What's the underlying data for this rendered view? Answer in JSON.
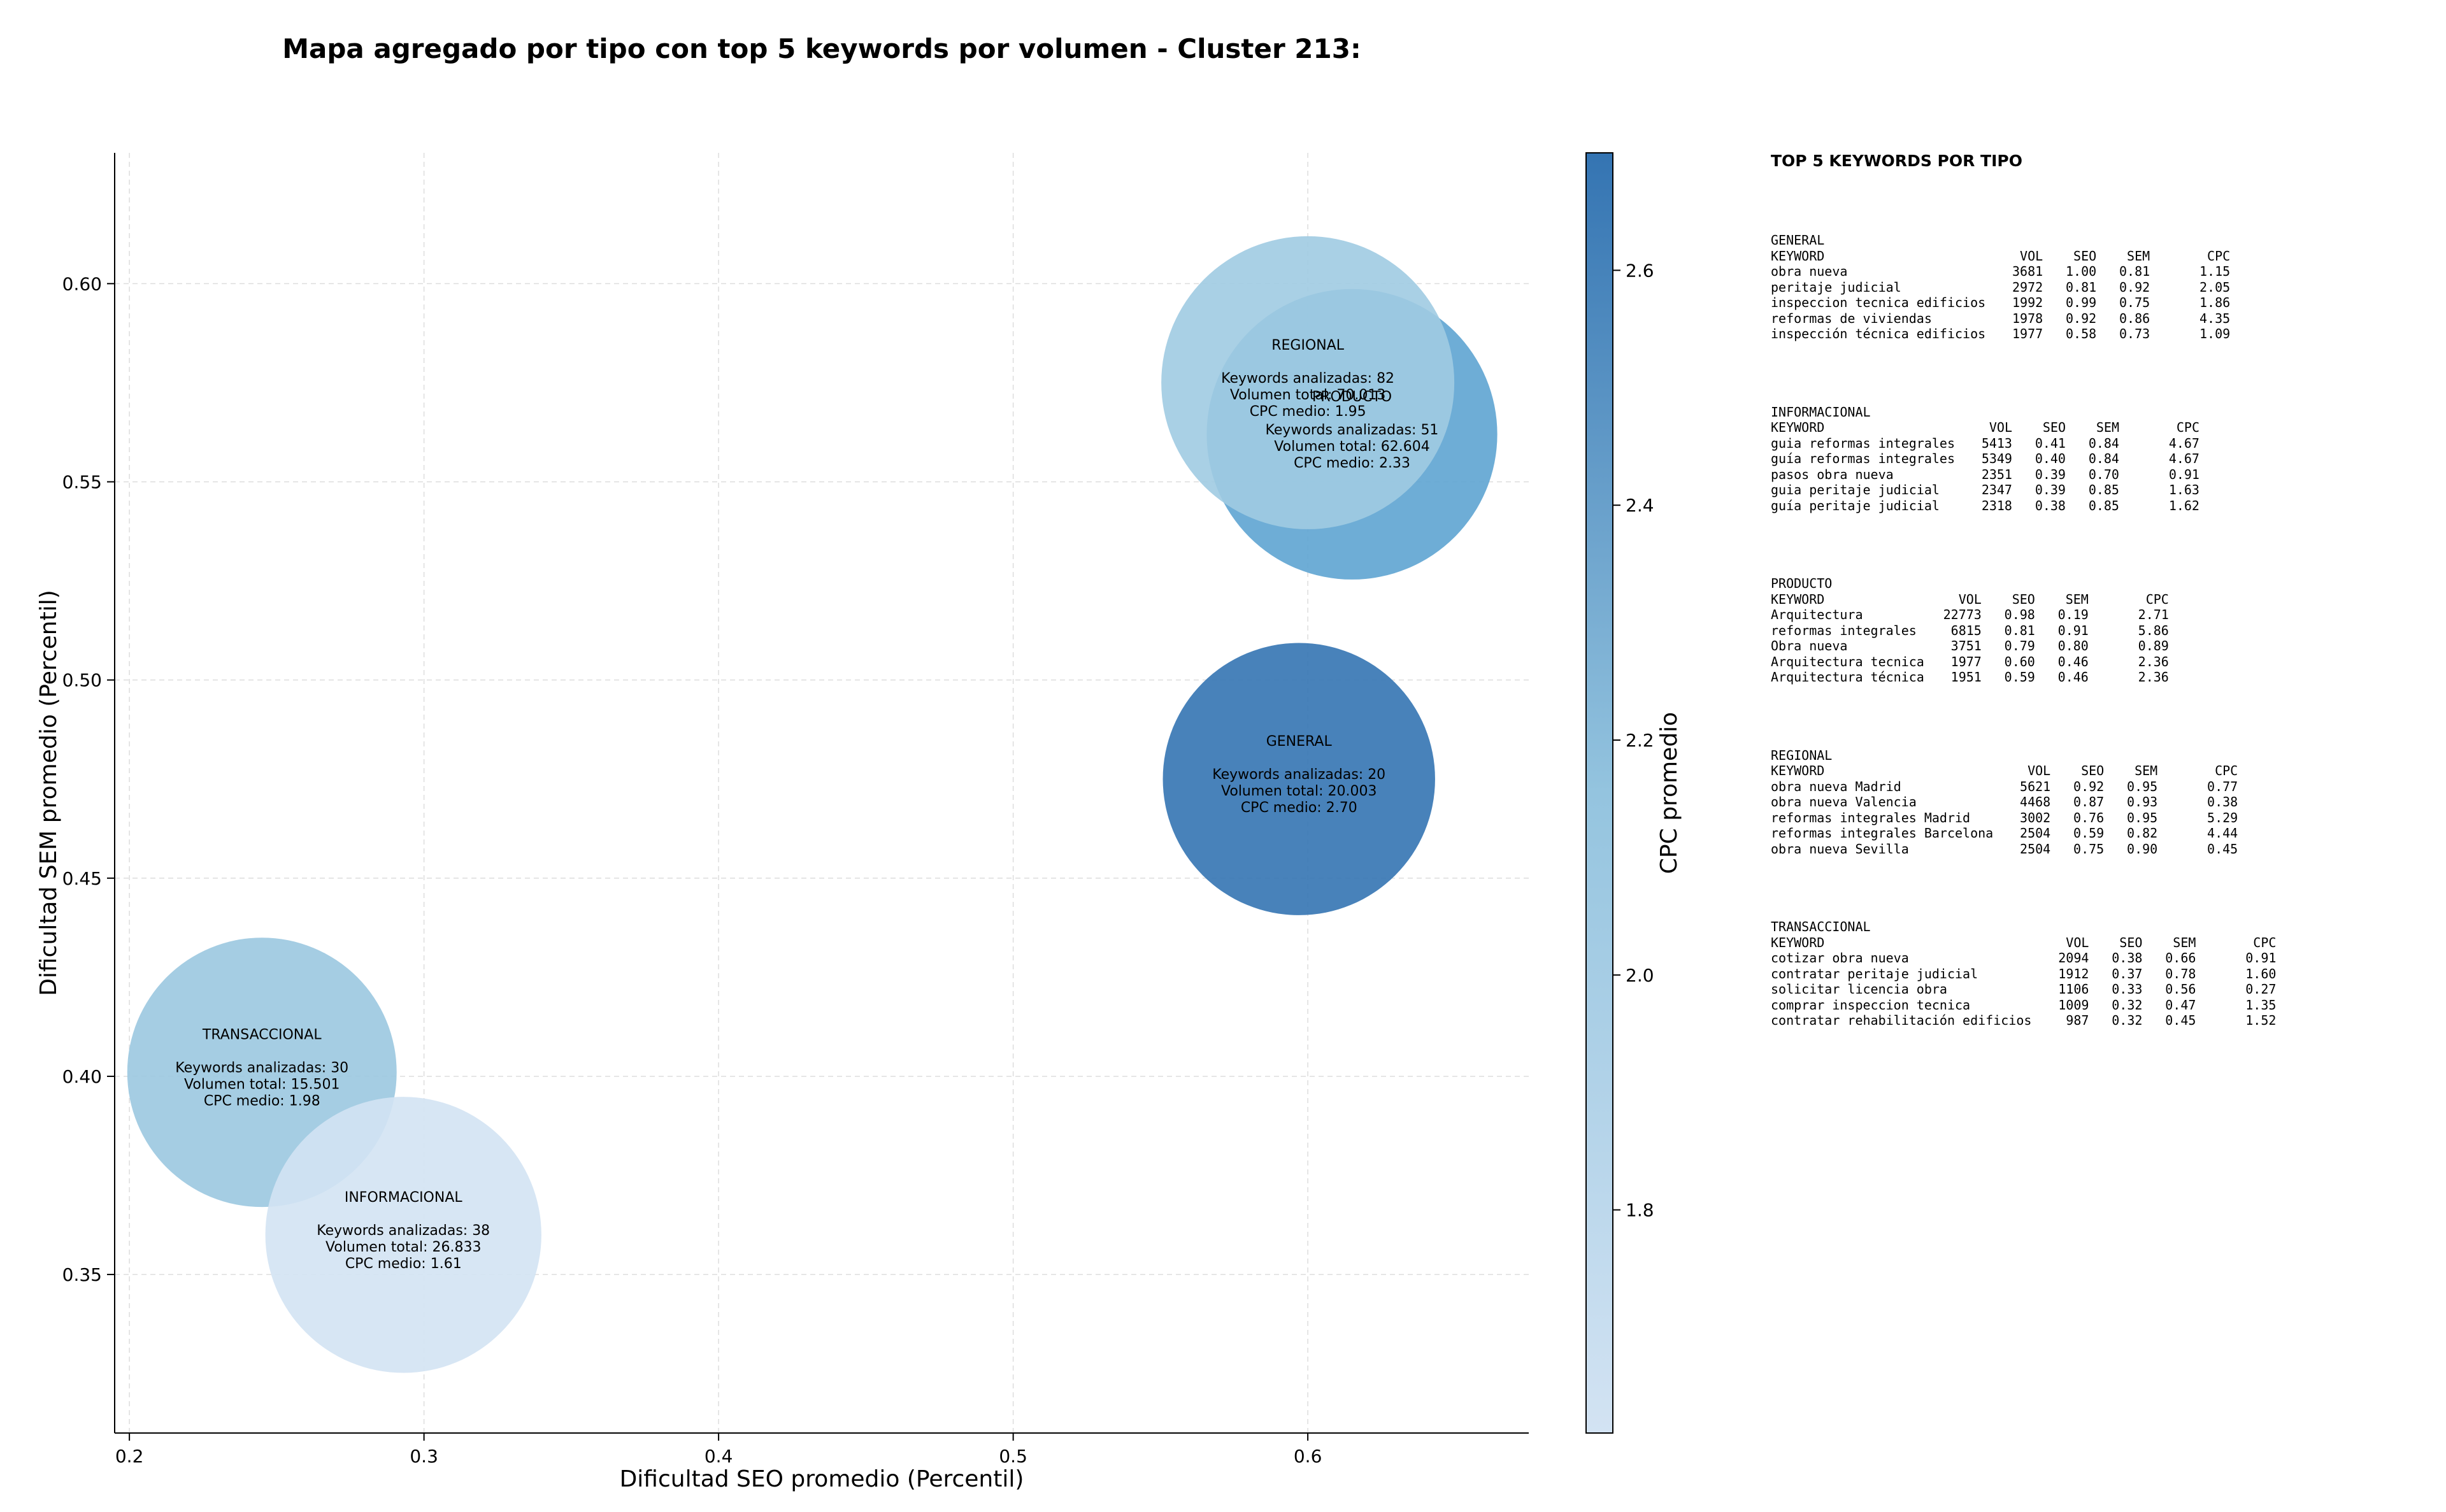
{
  "chart_data": {
    "type": "scatter",
    "title": "Mapa agregado por tipo con top 5 keywords por volumen - Cluster 213:",
    "xlabel": "Dificultad SEO promedio (Percentil)",
    "ylabel": "Dificultad SEM promedio (Percentil)",
    "xlim": [
      0.195,
      0.675
    ],
    "ylim": [
      0.31,
      0.633
    ],
    "xticks": [
      "0.2",
      "0.3",
      "0.4",
      "0.5",
      "0.6"
    ],
    "yticks": [
      "0.35",
      "0.40",
      "0.45",
      "0.50",
      "0.55",
      "0.60"
    ],
    "grid": true,
    "colorbar": {
      "label": "CPC promedio",
      "range": [
        1.61,
        2.7
      ],
      "ticks": [
        "1.8",
        "2.0",
        "2.2",
        "2.4",
        "2.6"
      ],
      "colormap": "Blues",
      "colors": {
        "low": "#d3e3f3",
        "mid": "#94c4df",
        "high": "#3474b2"
      }
    },
    "bubble_label_prefixes": {
      "keywords": "Keywords analizadas: ",
      "volume": "Volumen total: ",
      "cpc": "CPC medio: "
    },
    "points": [
      {
        "type": "PRODUCTO",
        "x": 0.615,
        "y": 0.562,
        "keywords": "51",
        "volume": "62.604",
        "cpc": "2.33",
        "color": "#5ea4d2"
      },
      {
        "type": "REGIONAL",
        "x": 0.6,
        "y": 0.575,
        "keywords": "82",
        "volume": "70.013",
        "cpc": "1.95",
        "color": "#a0cbe2"
      },
      {
        "type": "GENERAL",
        "x": 0.597,
        "y": 0.475,
        "keywords": "20",
        "volume": "20.003",
        "cpc": "2.70",
        "color": "#3474b2"
      },
      {
        "type": "TRANSACCIONAL",
        "x": 0.245,
        "y": 0.401,
        "keywords": "30",
        "volume": "15.501",
        "cpc": "1.98",
        "color": "#9bc8e0"
      },
      {
        "type": "INFORMACIONAL",
        "x": 0.293,
        "y": 0.36,
        "keywords": "38",
        "volume": "26.833",
        "cpc": "1.61",
        "color": "#d3e3f3"
      }
    ]
  },
  "side_panel": {
    "title": "TOP 5 KEYWORDS POR TIPO",
    "headers": [
      "KEYWORD",
      "VOL",
      "SEO",
      "SEM",
      "CPC"
    ],
    "groups": [
      {
        "type": "GENERAL",
        "rows": [
          [
            "obra nueva",
            "3681",
            "1.00",
            "0.81",
            "1.15"
          ],
          [
            "peritaje judicial",
            "2972",
            "0.81",
            "0.92",
            "2.05"
          ],
          [
            "inspeccion tecnica edificios",
            "1992",
            "0.99",
            "0.75",
            "1.86"
          ],
          [
            "reformas de viviendas",
            "1978",
            "0.92",
            "0.86",
            "4.35"
          ],
          [
            "inspección técnica edificios",
            "1977",
            "0.58",
            "0.73",
            "1.09"
          ]
        ]
      },
      {
        "type": "INFORMACIONAL",
        "rows": [
          [
            "guia reformas integrales",
            "5413",
            "0.41",
            "0.84",
            "4.67"
          ],
          [
            "guía reformas integrales",
            "5349",
            "0.40",
            "0.84",
            "4.67"
          ],
          [
            "pasos obra nueva",
            "2351",
            "0.39",
            "0.70",
            "0.91"
          ],
          [
            "guia peritaje judicial",
            "2347",
            "0.39",
            "0.85",
            "1.63"
          ],
          [
            "guía peritaje judicial",
            "2318",
            "0.38",
            "0.85",
            "1.62"
          ]
        ]
      },
      {
        "type": "PRODUCTO",
        "rows": [
          [
            "Arquitectura",
            "22773",
            "0.98",
            "0.19",
            "2.71"
          ],
          [
            "reformas integrales",
            "6815",
            "0.81",
            "0.91",
            "5.86"
          ],
          [
            "Obra nueva",
            "3751",
            "0.79",
            "0.80",
            "0.89"
          ],
          [
            "Arquitectura tecnica",
            "1977",
            "0.60",
            "0.46",
            "2.36"
          ],
          [
            "Arquitectura técnica",
            "1951",
            "0.59",
            "0.46",
            "2.36"
          ]
        ]
      },
      {
        "type": "REGIONAL",
        "rows": [
          [
            "obra nueva Madrid",
            "5621",
            "0.92",
            "0.95",
            "0.77"
          ],
          [
            "obra nueva Valencia",
            "4468",
            "0.87",
            "0.93",
            "0.38"
          ],
          [
            "reformas integrales Madrid",
            "3002",
            "0.76",
            "0.95",
            "5.29"
          ],
          [
            "reformas integrales Barcelona",
            "2504",
            "0.59",
            "0.82",
            "4.44"
          ],
          [
            "obra nueva Sevilla",
            "2504",
            "0.75",
            "0.90",
            "0.45"
          ]
        ]
      },
      {
        "type": "TRANSACCIONAL",
        "rows": [
          [
            "cotizar obra nueva",
            "2094",
            "0.38",
            "0.66",
            "0.91"
          ],
          [
            "contratar peritaje judicial",
            "1912",
            "0.37",
            "0.78",
            "1.60"
          ],
          [
            "solicitar licencia obra",
            "1106",
            "0.33",
            "0.56",
            "0.27"
          ],
          [
            "comprar inspeccion tecnica",
            "1009",
            "0.32",
            "0.47",
            "1.35"
          ],
          [
            "contratar rehabilitación edificios",
            "987",
            "0.32",
            "0.45",
            "1.52"
          ]
        ]
      }
    ]
  }
}
